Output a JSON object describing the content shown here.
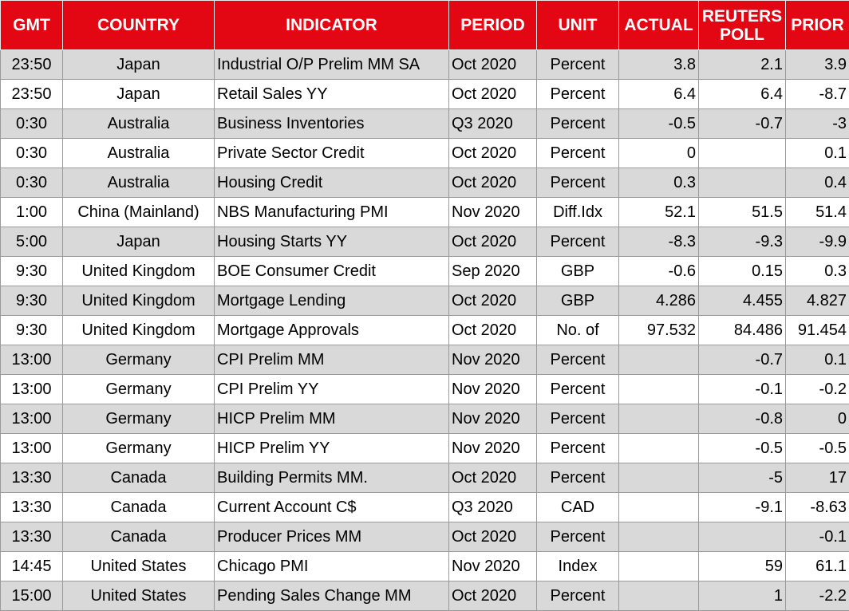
{
  "table": {
    "columns": [
      "GMT",
      "COUNTRY",
      "INDICATOR",
      "PERIOD",
      "UNIT",
      "ACTUAL",
      "REUTERS POLL",
      "PRIOR"
    ],
    "rows": [
      [
        "23:50",
        "Japan",
        "Industrial O/P Prelim MM SA",
        "Oct 2020",
        "Percent",
        "3.8",
        "2.1",
        "3.9"
      ],
      [
        "23:50",
        "Japan",
        "Retail Sales YY",
        "Oct 2020",
        "Percent",
        "6.4",
        "6.4",
        "-8.7"
      ],
      [
        "0:30",
        "Australia",
        "Business Inventories",
        "Q3 2020",
        "Percent",
        "-0.5",
        "-0.7",
        "-3"
      ],
      [
        "0:30",
        "Australia",
        "Private Sector Credit",
        "Oct 2020",
        "Percent",
        "0",
        null,
        "0.1"
      ],
      [
        "0:30",
        "Australia",
        "Housing Credit",
        "Oct 2020",
        "Percent",
        "0.3",
        null,
        "0.4"
      ],
      [
        "1:00",
        "China (Mainland)",
        "NBS Manufacturing PMI",
        "Nov 2020",
        "Diff.Idx",
        "52.1",
        "51.5",
        "51.4"
      ],
      [
        "5:00",
        "Japan",
        "Housing Starts YY",
        "Oct 2020",
        "Percent",
        "-8.3",
        "-9.3",
        "-9.9"
      ],
      [
        "9:30",
        "United Kingdom",
        "BOE Consumer Credit",
        "Sep 2020",
        "GBP",
        "-0.6",
        "0.15",
        "0.3"
      ],
      [
        "9:30",
        "United Kingdom",
        "Mortgage Lending",
        "Oct 2020",
        "GBP",
        "4.286",
        "4.455",
        "4.827"
      ],
      [
        "9:30",
        "United Kingdom",
        "Mortgage Approvals",
        "Oct 2020",
        "No. of",
        "97.532",
        "84.486",
        "91.454"
      ],
      [
        "13:00",
        "Germany",
        "CPI Prelim MM",
        "Nov 2020",
        "Percent",
        null,
        "-0.7",
        "0.1"
      ],
      [
        "13:00",
        "Germany",
        "CPI Prelim YY",
        "Nov 2020",
        "Percent",
        null,
        "-0.1",
        "-0.2"
      ],
      [
        "13:00",
        "Germany",
        "HICP Prelim MM",
        "Nov 2020",
        "Percent",
        null,
        "-0.8",
        "0"
      ],
      [
        "13:00",
        "Germany",
        "HICP Prelim YY",
        "Nov 2020",
        "Percent",
        null,
        "-0.5",
        "-0.5"
      ],
      [
        "13:30",
        "Canada",
        "Building Permits MM.",
        "Oct 2020",
        "Percent",
        null,
        "-5",
        "17"
      ],
      [
        "13:30",
        "Canada",
        "Current Account C$",
        "Q3 2020",
        "CAD",
        null,
        "-9.1",
        "-8.63"
      ],
      [
        "13:30",
        "Canada",
        "Producer Prices MM",
        "Oct 2020",
        "Percent",
        null,
        null,
        "-0.1"
      ],
      [
        "14:45",
        "United States",
        "Chicago PMI",
        "Nov 2020",
        "Index",
        null,
        "59",
        "61.1"
      ],
      [
        "15:00",
        "United States",
        "Pending Sales Change MM",
        "Oct 2020",
        "Percent",
        null,
        "1",
        "-2.2"
      ]
    ]
  }
}
